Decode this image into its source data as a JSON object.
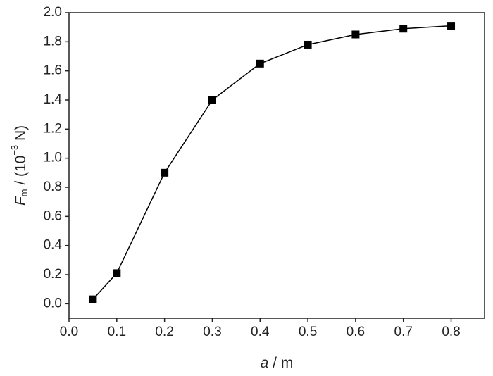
{
  "chart_data": {
    "type": "line",
    "x": [
      0.05,
      0.1,
      0.2,
      0.3,
      0.4,
      0.5,
      0.6,
      0.7,
      0.8
    ],
    "series": [
      {
        "color": "#000000",
        "values": [
          0.03,
          0.21,
          0.9,
          1.4,
          1.65,
          1.78,
          1.85,
          1.89,
          1.91
        ]
      }
    ],
    "xlim": [
      0,
      0.87
    ],
    "xticks": [
      {
        "value": 0,
        "label": "0.0"
      },
      0.1,
      0.2,
      0.3,
      0.4,
      0.5,
      0.6,
      0.7,
      0.8
    ],
    "ylim": [
      -0.1,
      2.0
    ],
    "yticks": [
      {
        "value": 0,
        "label": "0.0"
      },
      0.2,
      0.4,
      0.6,
      0.8,
      {
        "value": 1,
        "label": "1.0"
      },
      1.2,
      1.4,
      1.6,
      1.8,
      {
        "value": 2,
        "label": "2.0"
      }
    ],
    "xlabel": {
      "symbol": "a",
      "rest": " / m"
    },
    "ylabel": {
      "symbol": "F",
      "subscript": "m",
      "rest": " / (10",
      "exponent": "−3",
      "unit": " N)"
    }
  }
}
